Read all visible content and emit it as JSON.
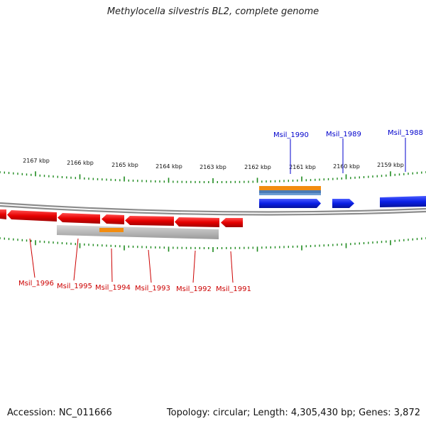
{
  "title": "Methylocella silvestris BL2, complete genome",
  "footer": {
    "accession": "Accession: NC_011666",
    "summary": "Topology: circular; Length: 4,305,430 bp; Genes: 3,872"
  },
  "ruler": {
    "unit": "kbp",
    "labels": [
      "2167 kbp",
      "2166 kbp",
      "2165 kbp",
      "2164 kbp",
      "2163 kbp",
      "2162 kbp",
      "2161 kbp",
      "2160 kbp",
      "2159 kbp"
    ]
  },
  "colors": {
    "forward_gene": "#0a1fe6",
    "reverse_gene": "#e60000",
    "tick": "#1e8a1e",
    "backbone": "#8c8c8c",
    "orange_feature": "#f28c0f",
    "blue_feature": "#4a7ab5",
    "gray_feature": "#b4b4b4"
  },
  "forward_genes": [
    "Msil_1990",
    "Msil_1989",
    "Msil_1988"
  ],
  "reverse_genes": [
    "Msil_1996",
    "Msil_1995",
    "Msil_1994",
    "Msil_1993",
    "Msil_1992",
    "Msil_1991"
  ]
}
